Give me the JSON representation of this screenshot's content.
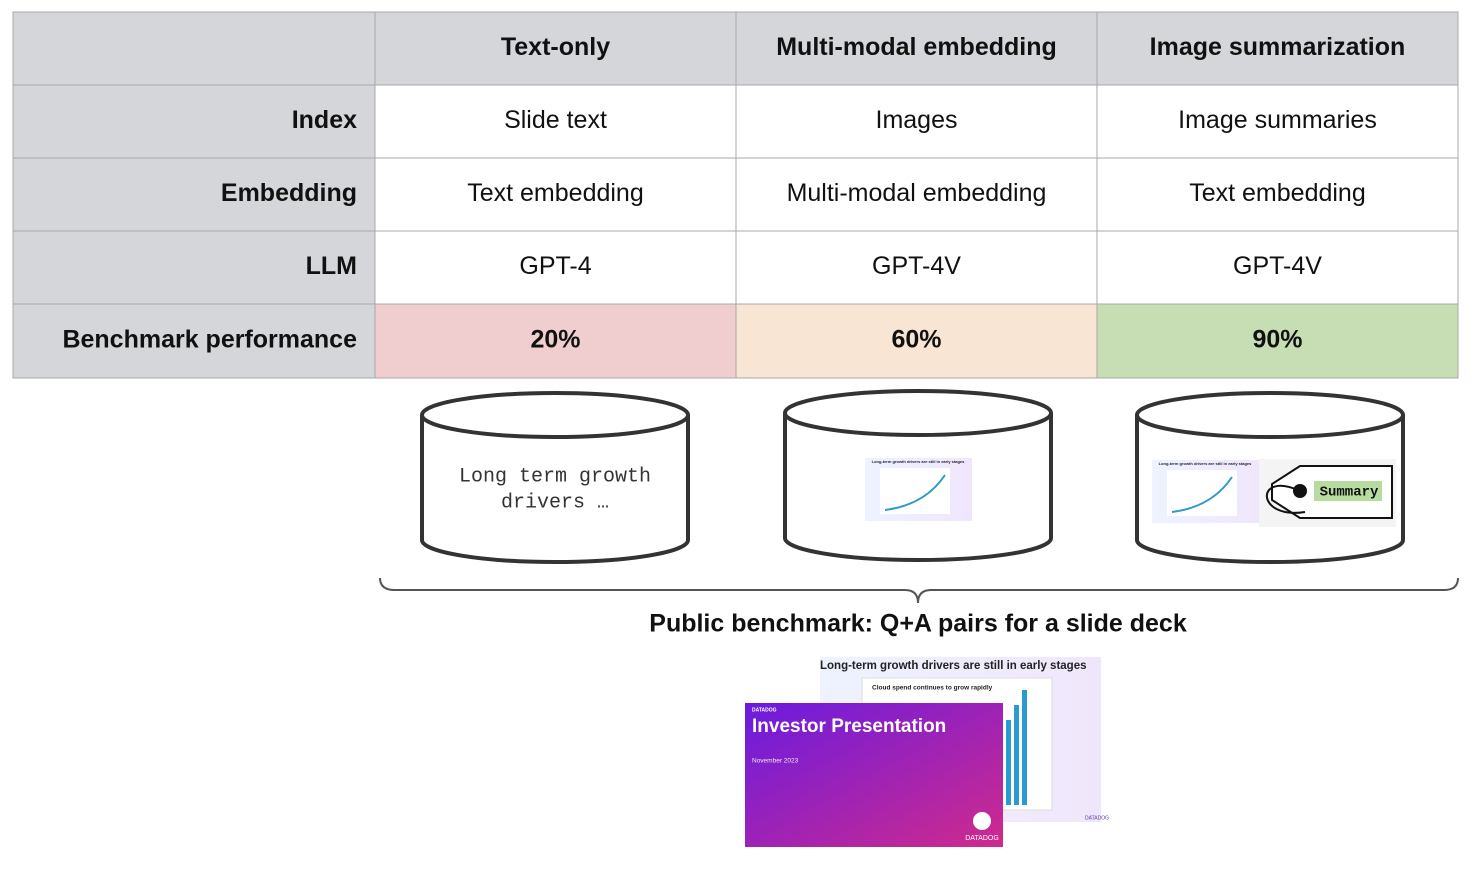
{
  "table": {
    "columns": [
      "Text-only",
      "Multi-modal embedding",
      "Image summarization"
    ],
    "rows": [
      {
        "label": "Index",
        "cells": [
          "Slide text",
          "Images",
          "Image summaries"
        ]
      },
      {
        "label": "Embedding",
        "cells": [
          "Text embedding",
          "Multi-modal embedding",
          "Text embedding"
        ]
      },
      {
        "label": "LLM",
        "cells": [
          "GPT-4",
          "GPT-4V",
          "GPT-4V"
        ]
      },
      {
        "label": "Benchmark performance",
        "cells": [
          "20%",
          "60%",
          "90%"
        ]
      }
    ]
  },
  "stores": {
    "text_lines": [
      "Long term growth",
      "drivers …"
    ],
    "tag": "Summary"
  },
  "caption": "Public benchmark: Q+A pairs for a slide deck",
  "slides": {
    "back_title": "Long-term growth drivers are still in early stages",
    "back_subtitle": "Cloud spend continues to grow rapidly",
    "brand": "DATADOG",
    "front_title": "Investor Presentation",
    "front_date": "November 2023"
  }
}
